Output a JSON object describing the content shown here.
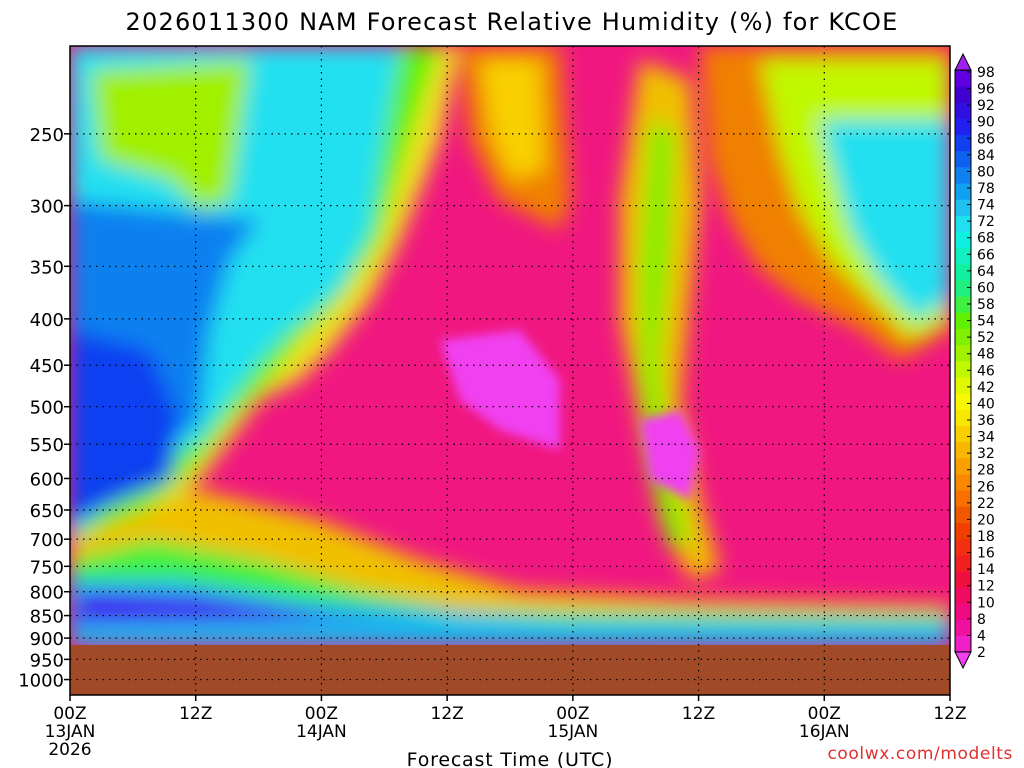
{
  "chart_data": {
    "type": "heatmap",
    "title": "2026011300 NAM Forecast Relative Humidity (%) for KCOE",
    "xlabel": "Forecast Time (UTC)",
    "ylabel": "",
    "credit": "coolwx.com/modelts",
    "x_ticks": [
      {
        "hours": 0,
        "label": "00Z",
        "sub": [
          "13JAN",
          "2026"
        ]
      },
      {
        "hours": 12,
        "label": "12Z",
        "sub": []
      },
      {
        "hours": 24,
        "label": "00Z",
        "sub": [
          "14JAN"
        ]
      },
      {
        "hours": 36,
        "label": "12Z",
        "sub": []
      },
      {
        "hours": 48,
        "label": "00Z",
        "sub": [
          "15JAN"
        ]
      },
      {
        "hours": 60,
        "label": "12Z",
        "sub": []
      },
      {
        "hours": 72,
        "label": "00Z",
        "sub": [
          "16JAN"
        ]
      },
      {
        "hours": 84,
        "label": "12Z",
        "sub": []
      }
    ],
    "xlim_hours": [
      0,
      84
    ],
    "y_ticks": [
      250,
      300,
      350,
      400,
      450,
      500,
      550,
      600,
      650,
      700,
      750,
      800,
      850,
      900,
      950,
      1000
    ],
    "y_unit": "hPa",
    "y_top_hPa": 200,
    "y_bottom_hPa": 1040,
    "ground_level_hPa": 925,
    "grid": true,
    "legend_position": "right",
    "colorbar": {
      "levels": [
        2,
        4,
        8,
        10,
        12,
        14,
        16,
        18,
        20,
        22,
        26,
        28,
        30,
        32,
        34,
        36,
        40,
        42,
        46,
        48,
        52,
        54,
        58,
        60,
        64,
        66,
        68,
        72,
        74,
        78,
        80,
        84,
        86,
        90,
        92,
        96,
        98
      ],
      "colors": [
        "#f040f0",
        "#f020c8",
        "#f010a0",
        "#f00a80",
        "#f00a60",
        "#f01040",
        "#f02020",
        "#f03010",
        "#f04000",
        "#f05800",
        "#f87000",
        "#f88800",
        "#f8a000",
        "#f8b800",
        "#f8d000",
        "#f8e800",
        "#f8f800",
        "#e0f800",
        "#c0f800",
        "#a0f000",
        "#80f000",
        "#60f000",
        "#40f040",
        "#20f080",
        "#10f0a0",
        "#10f0c0",
        "#10f0e0",
        "#20e0f0",
        "#20c0f0",
        "#10a0f0",
        "#1080f0",
        "#1060f0",
        "#1040f0",
        "#2020f0",
        "#3010e0",
        "#4000d0",
        "#6000e0",
        "#a020f0"
      ],
      "ticks": [
        2,
        4,
        8,
        10,
        12,
        14,
        16,
        18,
        20,
        22,
        26,
        28,
        32,
        34,
        36,
        40,
        42,
        46,
        48,
        52,
        54,
        58,
        60,
        64,
        66,
        68,
        72,
        74,
        78,
        80,
        84,
        86,
        90,
        92,
        96,
        98
      ]
    }
  }
}
